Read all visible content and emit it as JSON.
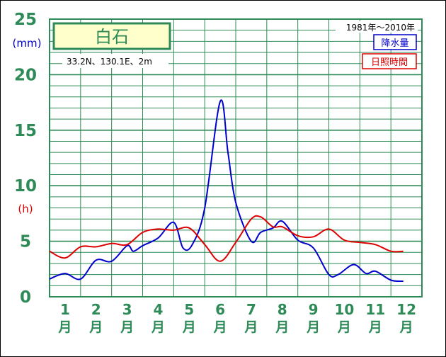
{
  "chart_data": {
    "type": "line",
    "title": "白石",
    "location": "33.2N、130.1E、2m",
    "period": "1981年〜2010年",
    "y_left_unit": "(mm)",
    "y_left_ticks": [
      "0",
      "5",
      "10",
      "15",
      "20",
      "25"
    ],
    "y_right_unit": "(h)",
    "ylim": [
      0,
      25
    ],
    "categories": [
      {
        "num": "1",
        "unit": "月"
      },
      {
        "num": "2",
        "unit": "月"
      },
      {
        "num": "3",
        "unit": "月"
      },
      {
        "num": "4",
        "unit": "月"
      },
      {
        "num": "5",
        "unit": "月"
      },
      {
        "num": "6",
        "unit": "月"
      },
      {
        "num": "7",
        "unit": "月"
      },
      {
        "num": "8",
        "unit": "月"
      },
      {
        "num": "9",
        "unit": "月"
      },
      {
        "num": "10",
        "unit": "月"
      },
      {
        "num": "11",
        "unit": "月"
      },
      {
        "num": "12",
        "unit": "月"
      }
    ],
    "series": [
      {
        "name": "降水量",
        "color": "#0000cc",
        "points": [
          [
            0.0,
            1.6
          ],
          [
            0.5,
            2.1
          ],
          [
            1.0,
            1.6
          ],
          [
            1.5,
            3.3
          ],
          [
            2.0,
            3.2
          ],
          [
            2.5,
            4.6
          ],
          [
            2.7,
            4.1
          ],
          [
            3.0,
            4.6
          ],
          [
            3.5,
            5.3
          ],
          [
            4.0,
            6.7
          ],
          [
            4.3,
            4.4
          ],
          [
            4.6,
            4.7
          ],
          [
            5.0,
            8.0
          ],
          [
            5.5,
            17.6
          ],
          [
            5.75,
            13.0
          ],
          [
            6.0,
            8.5
          ],
          [
            6.5,
            5.0
          ],
          [
            6.8,
            5.8
          ],
          [
            7.2,
            6.2
          ],
          [
            7.5,
            6.8
          ],
          [
            8.0,
            5.1
          ],
          [
            8.5,
            4.4
          ],
          [
            9.0,
            2.0
          ],
          [
            9.3,
            2.0
          ],
          [
            9.8,
            2.9
          ],
          [
            10.2,
            2.1
          ],
          [
            10.5,
            2.3
          ],
          [
            11.0,
            1.5
          ],
          [
            11.4,
            1.4
          ]
        ]
      },
      {
        "name": "日照時間",
        "color": "#dd0000",
        "points": [
          [
            0.0,
            4.1
          ],
          [
            0.5,
            3.5
          ],
          [
            1.0,
            4.5
          ],
          [
            1.5,
            4.5
          ],
          [
            2.0,
            4.8
          ],
          [
            2.5,
            4.7
          ],
          [
            3.0,
            5.8
          ],
          [
            3.5,
            6.1
          ],
          [
            4.0,
            6.0
          ],
          [
            4.5,
            6.2
          ],
          [
            5.0,
            4.7
          ],
          [
            5.5,
            3.2
          ],
          [
            6.0,
            4.9
          ],
          [
            6.5,
            7.0
          ],
          [
            6.8,
            7.2
          ],
          [
            7.2,
            6.3
          ],
          [
            7.5,
            6.3
          ],
          [
            8.0,
            5.5
          ],
          [
            8.5,
            5.4
          ],
          [
            9.0,
            6.1
          ],
          [
            9.5,
            5.1
          ],
          [
            10.0,
            4.9
          ],
          [
            10.5,
            4.7
          ],
          [
            11.0,
            4.1
          ],
          [
            11.4,
            4.1
          ]
        ]
      }
    ],
    "grid": true
  }
}
